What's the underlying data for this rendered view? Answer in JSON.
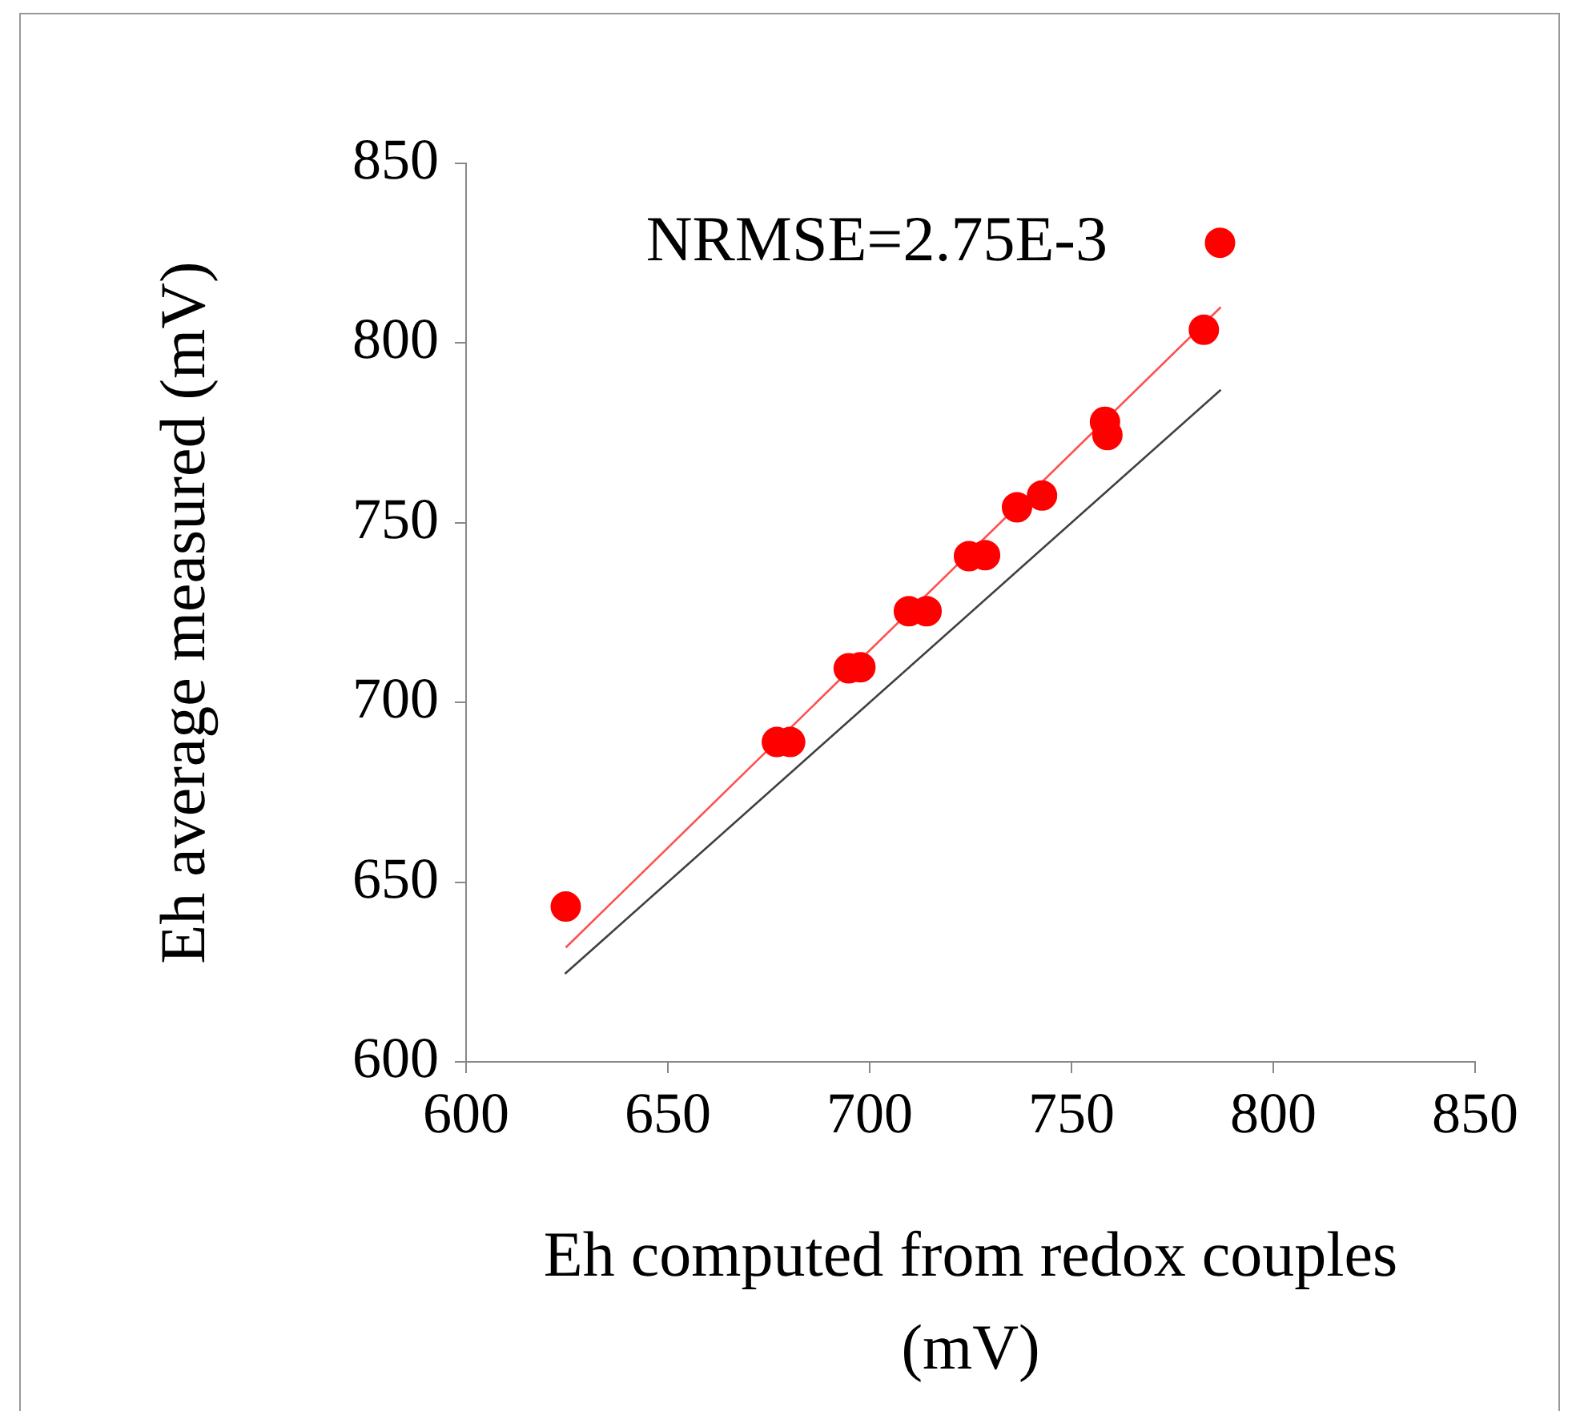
{
  "chart_data": {
    "type": "scatter",
    "xlabel": "Eh computed from redox couples (mV)",
    "ylabel": "Eh average measured (mV)",
    "annotations": [
      "NRMSE=2.75E-3"
    ],
    "series": [
      {
        "color": "#ff0000",
        "marker": "circle",
        "x": [
          624.7,
          677.0,
          680.3,
          694.8,
          697.7,
          709.7,
          714.1,
          724.6,
          728.6,
          736.5,
          742.7,
          758.3,
          758.9,
          782.8,
          786.8
        ],
        "values": [
          643.2,
          689.0,
          689.0,
          709.5,
          709.8,
          725.4,
          725.4,
          740.7,
          741.0,
          754.3,
          757.6,
          778.1,
          774.4,
          803.7,
          827.9
        ]
      },
      {
        "type": "line",
        "color": "#ff5050",
        "marker": "none",
        "x": [
          624.7,
          787.0
        ],
        "values": [
          631.8,
          810.0
        ]
      },
      {
        "type": "line",
        "color": "#404040",
        "marker": "none",
        "x": [
          624.5,
          787.0
        ],
        "values": [
          624.5,
          787.0
        ]
      }
    ],
    "xlim": [
      600,
      850
    ],
    "xticks": [
      600,
      650,
      700,
      750,
      800,
      850
    ],
    "ylim": [
      600,
      850
    ],
    "yticks": [
      600,
      650,
      700,
      750,
      800,
      850
    ],
    "grid": false,
    "legend": false
  }
}
